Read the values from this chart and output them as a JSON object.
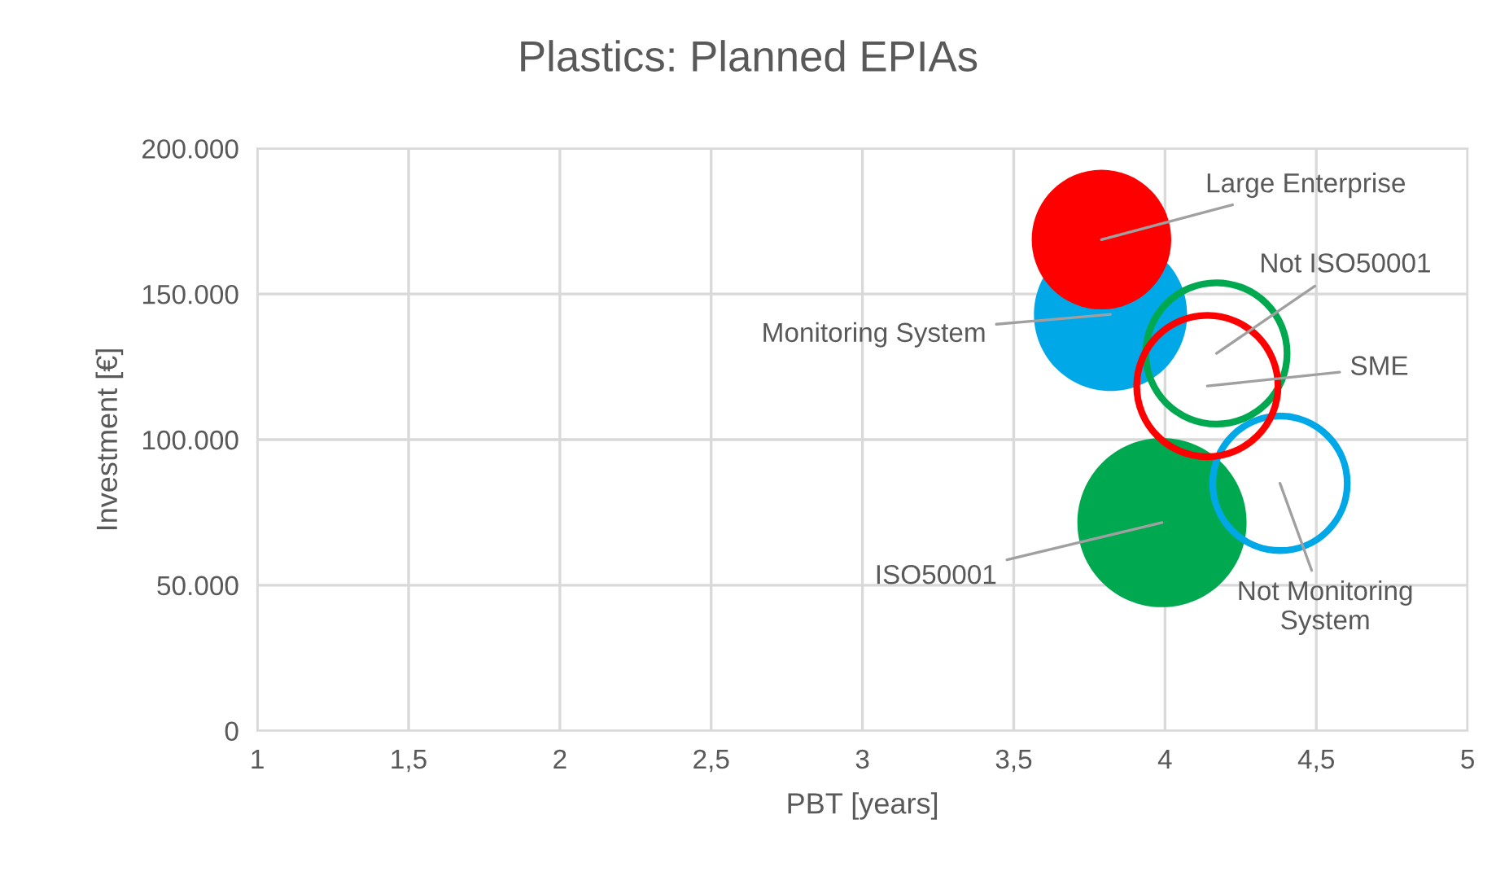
{
  "chart_data": {
    "type": "bubble",
    "title": "Plastics: Planned EPIAs",
    "xlabel": "PBT [years]",
    "ylabel": "Investment [€]",
    "xlim": [
      1,
      5
    ],
    "xticks": [
      1,
      {
        "value": 1.5,
        "label": "1,5"
      },
      2,
      {
        "value": 2.5,
        "label": "2,5"
      },
      3,
      {
        "value": 3.5,
        "label": "3,5"
      },
      4,
      {
        "value": 4.5,
        "label": "4,5"
      },
      5
    ],
    "ylim": [
      0,
      200000
    ],
    "yticks": [
      0,
      {
        "value": 50000,
        "label": "50.000"
      },
      {
        "value": 100000,
        "label": "100.000"
      },
      {
        "value": 150000,
        "label": "150.000"
      },
      {
        "value": 200000,
        "label": "200.000"
      }
    ],
    "grid": true,
    "legend": false,
    "series": [
      {
        "name": "Monitoring System",
        "color": "#00a8e8",
        "x": [
          3.82
        ],
        "values": [
          143000
        ],
        "sizes": [
          0.82
        ]
      },
      {
        "name": "Not Monitoring\nSystem",
        "color": "#00a8e8",
        "line_style": "solid",
        "x": [
          4.38
        ],
        "values": [
          85000
        ],
        "sizes": [
          0.68
        ]
      },
      {
        "name": "ISO50001",
        "color": "#00a84f",
        "x": [
          3.99
        ],
        "values": [
          71500
        ],
        "sizes": [
          1
        ]
      },
      {
        "name": "Not ISO50001",
        "color": "#00a84f",
        "line_style": "solid",
        "x": [
          4.17
        ],
        "values": [
          129600
        ],
        "sizes": [
          0.75
        ]
      },
      {
        "name": "Large Enterprise",
        "color": "#ff0000",
        "x": [
          3.79
        ],
        "values": [
          168700
        ],
        "sizes": [
          0.68
        ]
      },
      {
        "name": "SME",
        "color": "#ff0000",
        "line_style": "solid",
        "x": [
          4.14
        ],
        "values": [
          118400
        ],
        "sizes": [
          0.75
        ]
      }
    ]
  }
}
